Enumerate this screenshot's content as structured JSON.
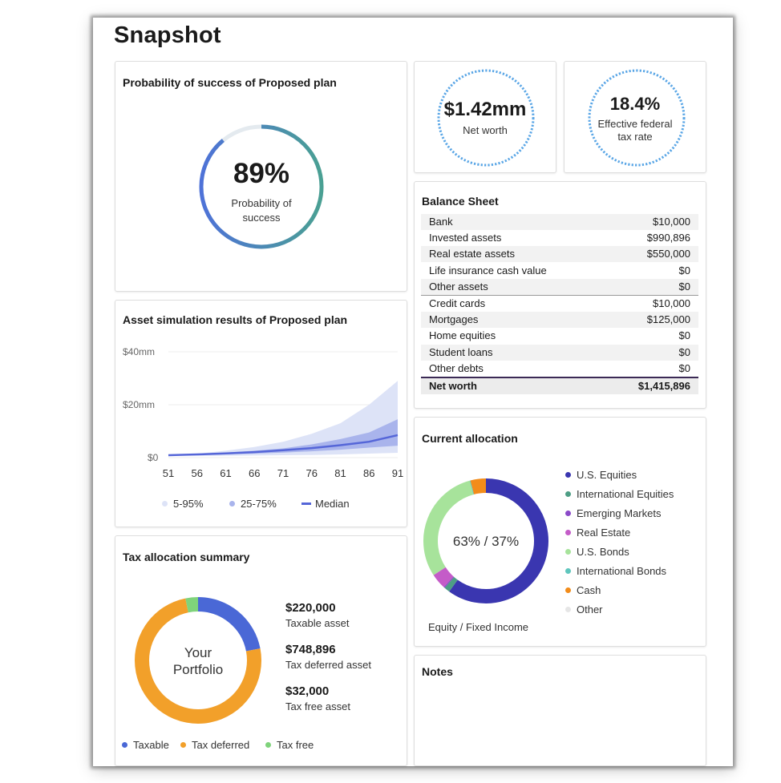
{
  "page": {
    "title": "Snapshot"
  },
  "probability": {
    "title": "Probability of success of Proposed plan",
    "value": "89%",
    "label": "Probability of success",
    "percent": 89
  },
  "net_worth": {
    "value": "$1.42mm",
    "label": "Net worth"
  },
  "tax_rate": {
    "value": "18.4%",
    "label": "Effective federal tax rate"
  },
  "balance_sheet": {
    "title": "Balance Sheet",
    "assets": [
      {
        "label": "Bank",
        "value": "$10,000"
      },
      {
        "label": "Invested assets",
        "value": "$990,896"
      },
      {
        "label": "Real estate assets",
        "value": "$550,000"
      },
      {
        "label": "Life insurance cash value",
        "value": "$0"
      },
      {
        "label": "Other assets",
        "value": "$0"
      }
    ],
    "liabilities": [
      {
        "label": "Credit cards",
        "value": "$10,000"
      },
      {
        "label": "Mortgages",
        "value": "$125,000"
      },
      {
        "label": "Home equities",
        "value": "$0"
      },
      {
        "label": "Student loans",
        "value": "$0"
      },
      {
        "label": "Other debts",
        "value": "$0"
      }
    ],
    "total": {
      "label": "Net worth",
      "value": "$1,415,896"
    }
  },
  "simulation": {
    "title": "Asset simulation results of Proposed plan",
    "legend": [
      "5-95%",
      "25-75%",
      "Median"
    ],
    "colors": {
      "band_outer": "#dde3f7",
      "band_inner": "#a9b4ec",
      "median": "#5566d8"
    },
    "chart_data": {
      "type": "area",
      "x": [
        51,
        56,
        61,
        66,
        71,
        76,
        81,
        86,
        91
      ],
      "x_ticks": [
        "51",
        "56",
        "61",
        "66",
        "71",
        "76",
        "81",
        "86",
        "91"
      ],
      "y_ticks": [
        "$0",
        "$20mm",
        "$40mm"
      ],
      "ylim": [
        0,
        40
      ],
      "series": [
        {
          "name": "5-95%",
          "low": [
            0.8,
            0.7,
            0.7,
            0.8,
            0.9,
            1.0,
            1.2,
            1.5,
            1.8
          ],
          "high": [
            1.0,
            1.5,
            2.6,
            4.0,
            6.0,
            9.0,
            13.0,
            20.0,
            29.0
          ]
        },
        {
          "name": "25-75%",
          "low": [
            0.9,
            1.0,
            1.2,
            1.5,
            1.9,
            2.4,
            3.0,
            3.8,
            4.5
          ],
          "high": [
            1.0,
            1.3,
            1.9,
            2.6,
            3.5,
            5.0,
            7.0,
            9.5,
            14.5
          ]
        },
        {
          "name": "Median",
          "values": [
            0.9,
            1.2,
            1.6,
            2.1,
            2.8,
            3.6,
            4.7,
            6.0,
            8.5
          ]
        }
      ]
    }
  },
  "allocation": {
    "title": "Current allocation",
    "center": "63% / 37%",
    "caption": "Equity / Fixed Income",
    "legend": [
      {
        "label": "U.S. Equities",
        "color": "#3a36b0",
        "value": 60
      },
      {
        "label": "International Equities",
        "color": "#4e9e85",
        "value": 1.5
      },
      {
        "label": "Emerging Markets",
        "color": "#8b4ac9",
        "value": 0.3
      },
      {
        "label": "Real Estate",
        "color": "#c45cc8",
        "value": 4
      },
      {
        "label": "U.S. Bonds",
        "color": "#a7e39b",
        "value": 30
      },
      {
        "label": "International Bonds",
        "color": "#5fc6bd",
        "value": 0.2
      },
      {
        "label": "Cash",
        "color": "#f28c1a",
        "value": 4
      },
      {
        "label": "Other",
        "color": "#e6e6e6",
        "value": 0
      }
    ]
  },
  "tax_summary": {
    "title": "Tax allocation summary",
    "center": [
      "Your",
      "Portfolio"
    ],
    "items": [
      {
        "amount": "$220,000",
        "label": "Taxable asset",
        "legend": "Taxable",
        "color": "#4a68d6",
        "value": 220000
      },
      {
        "amount": "$748,896",
        "label": "Tax deferred asset",
        "legend": "Tax deferred",
        "color": "#f2a02a",
        "value": 748896
      },
      {
        "amount": "$32,000",
        "label": "Tax free asset",
        "legend": "Tax free",
        "color": "#7fd37b",
        "value": 32000
      }
    ]
  },
  "notes": {
    "title": "Notes"
  }
}
